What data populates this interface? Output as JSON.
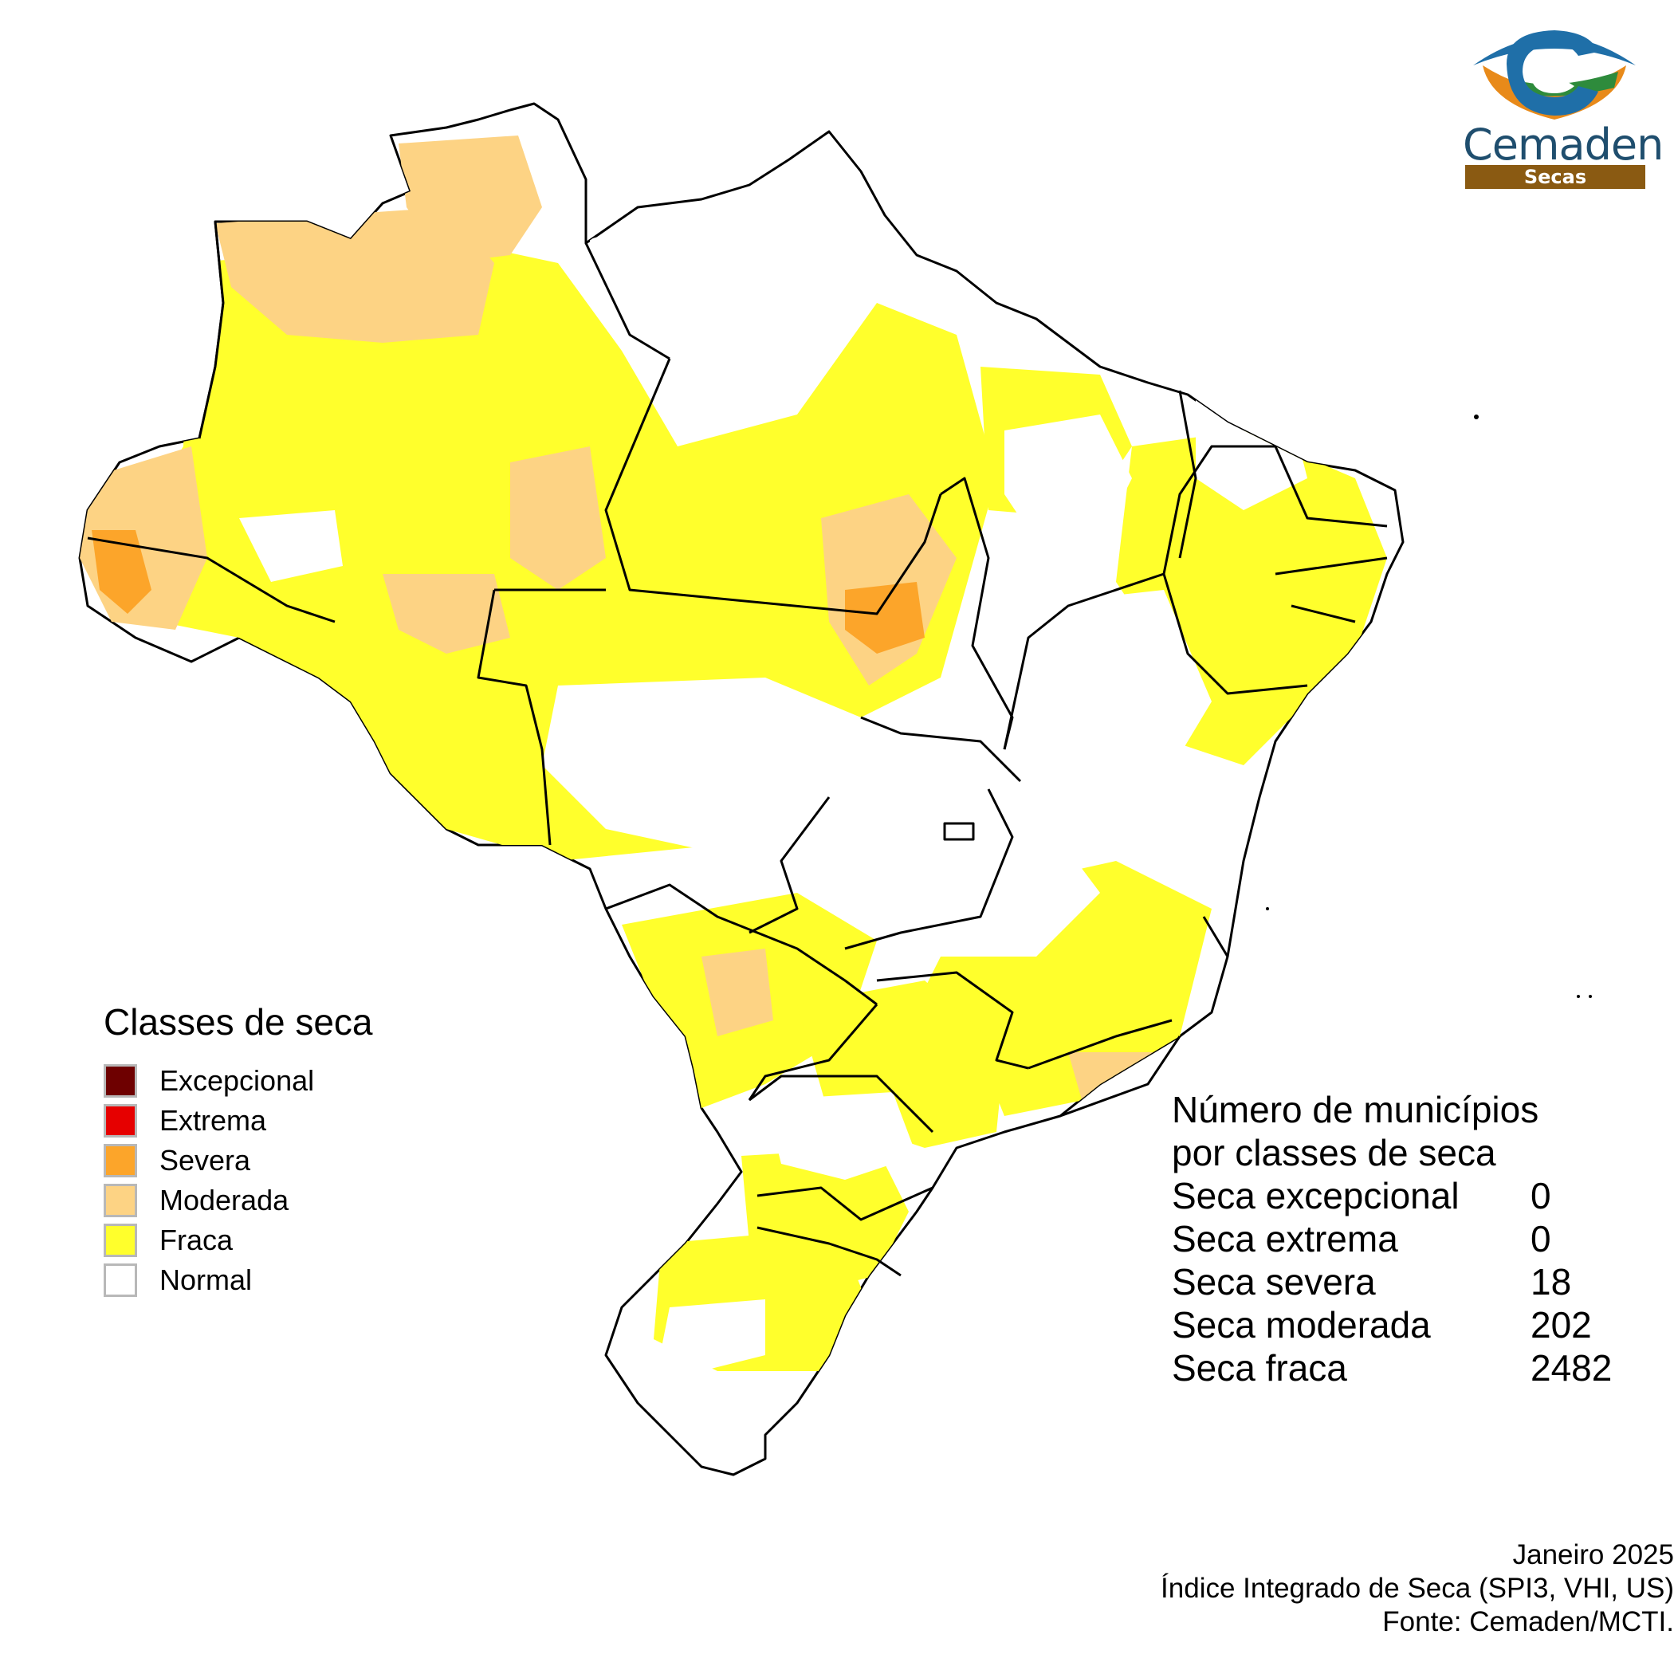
{
  "legend": {
    "title": "Classes de seca",
    "items": [
      {
        "label": "Excepcional",
        "color": "#6e0000"
      },
      {
        "label": "Extrema",
        "color": "#e60000"
      },
      {
        "label": "Severa",
        "color": "#fca52a"
      },
      {
        "label": "Moderada",
        "color": "#fdd384"
      },
      {
        "label": "Fraca",
        "color": "#ffff2c"
      },
      {
        "label": "Normal",
        "color": "#ffffff"
      }
    ]
  },
  "counts": {
    "title_line1": "Número de municípios",
    "title_line2": "por classes de seca",
    "rows": [
      {
        "label": "Seca excepcional",
        "value": "0"
      },
      {
        "label": "Seca extrema",
        "value": "0"
      },
      {
        "label": "Seca severa",
        "value": "18"
      },
      {
        "label": "Seca moderada",
        "value": "202"
      },
      {
        "label": "Seca fraca",
        "value": "2482"
      }
    ]
  },
  "footer": {
    "date": "Janeiro 2025",
    "index": "Índice Integrado de Seca (SPI3, VHI, US)",
    "source": "Fonte: Cemaden/MCTI."
  },
  "logo": {
    "name": "Cemaden",
    "subtitle": "Secas",
    "icon": "cemaden-eye-logo-icon",
    "colors": {
      "blue": "#1f6fa8",
      "brown": "#8a5a12",
      "orange": "#e88a1a",
      "green": "#2e8b3c"
    }
  },
  "map": {
    "country": "Brasil",
    "dominant_class": "Fraca"
  }
}
